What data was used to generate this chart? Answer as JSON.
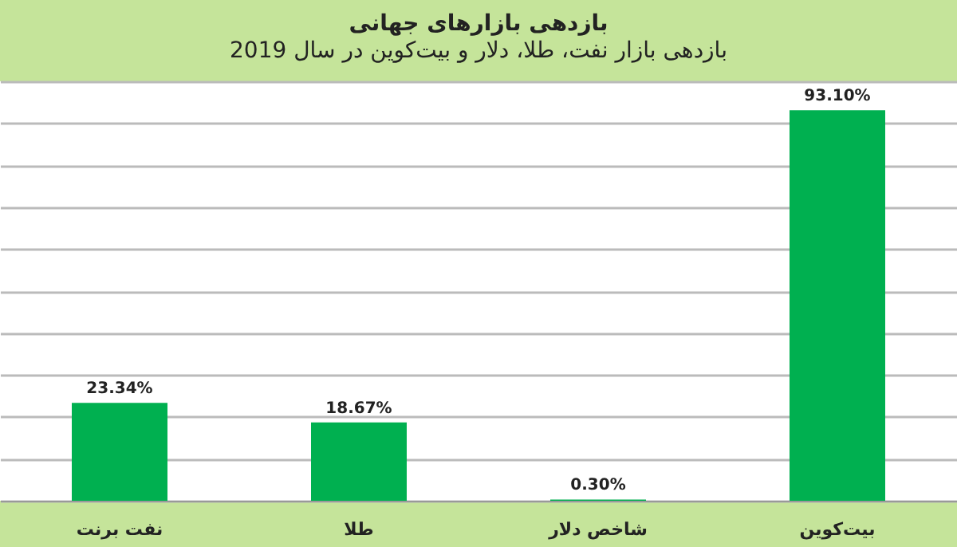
{
  "chart_data": {
    "type": "bar",
    "title": "بازدهی بازارهای جهانی",
    "subtitle": "بازدهی بازار نفت، طلا، دلار و بیت‌کوین در سال 2019",
    "categories": [
      "نفت برنت",
      "طلا",
      "شاخص دلار",
      "بیت‌کوین"
    ],
    "values": [
      23.34,
      18.67,
      0.3,
      93.1
    ],
    "value_labels": [
      "23.34%",
      "18.67%",
      "0.30%",
      "93.10%"
    ],
    "color": "#00b050",
    "ylim": [
      0,
      100
    ],
    "yticks": [
      {
        "value": 0,
        "label": null
      },
      {
        "value": 10,
        "label": null
      },
      {
        "value": 20,
        "label": null
      },
      {
        "value": 30,
        "label": null
      },
      {
        "value": 40,
        "label": null
      },
      {
        "value": 50,
        "label": null
      },
      {
        "value": 60,
        "label": null
      },
      {
        "value": 70,
        "label": null
      },
      {
        "value": 80,
        "label": null
      },
      {
        "value": 90,
        "label": null
      },
      {
        "value": 100,
        "label": null
      }
    ],
    "tick_labels": "x",
    "grid": "y"
  }
}
